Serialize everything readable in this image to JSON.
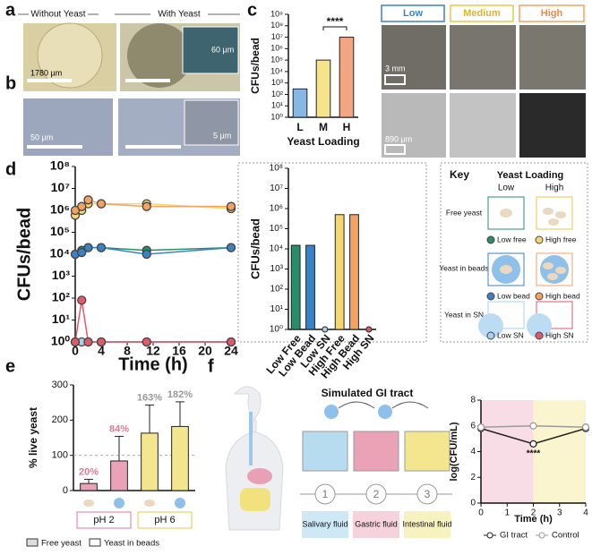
{
  "panel_labels": [
    "a",
    "b",
    "c",
    "d",
    "e",
    "f"
  ],
  "panel_a": {
    "left": "Without Yeast",
    "right": "With Yeast",
    "scale_bars": [
      "1780 µm",
      "60 µm"
    ]
  },
  "panel_b": {
    "scale_bars": [
      "50 µm",
      "5 µm"
    ]
  },
  "panel_c_images": {
    "columns": [
      "Low",
      "Medium",
      "High"
    ],
    "scale_bars": [
      "3 mm",
      "890 µm"
    ]
  },
  "key": {
    "title": "Key",
    "subtitle": "Yeast Loading",
    "columns": [
      "Low",
      "High"
    ],
    "rows": [
      "Free yeast",
      "Yeast in beads",
      "Yeast in SN"
    ]
  },
  "panel_f": {
    "title": "Simulated GI tract",
    "steps": [
      "1",
      "2",
      "3"
    ],
    "fluids": [
      "Salivary fluid",
      "Gastric fluid",
      "Intestinal fluid"
    ]
  },
  "chart_data": [
    {
      "type": "bar",
      "ylabel": "CFUs/bead",
      "xlabel": "Yeast Loading",
      "log_y": true,
      "categories": [
        "L",
        "M",
        "H"
      ],
      "values": [
        300,
        100000,
        10000000
      ],
      "colors": [
        "#86b8e3",
        "#f6e48c",
        "#f4a582"
      ],
      "annotation": "****",
      "ylim": [
        1,
        1000000000
      ],
      "yticks": [
        {
          "value": 1,
          "label": "10⁰"
        },
        {
          "value": 10,
          "label": "10¹"
        },
        {
          "value": 100,
          "label": "10²"
        },
        {
          "value": 1000,
          "label": "10³"
        },
        {
          "value": 10000,
          "label": "10⁴"
        },
        {
          "value": 100000,
          "label": "10⁵"
        },
        {
          "value": 1000000,
          "label": "10⁶"
        },
        {
          "value": 10000000,
          "label": "10⁷"
        },
        {
          "value": 100000000,
          "label": "10⁸"
        },
        {
          "value": 1000000000,
          "label": "10⁹"
        }
      ]
    },
    {
      "type": "line",
      "ylabel": "CFUs/bead",
      "xlabel": "Time (h)",
      "log_y": true,
      "x": [
        0,
        1,
        2,
        4,
        11,
        24
      ],
      "series": [
        {
          "name": "Low free",
          "color": "#2a8c6a",
          "values": [
            10000,
            15000,
            20000,
            20000,
            15000,
            20000
          ]
        },
        {
          "name": "High free",
          "color": "#f5d76e",
          "values": [
            600000,
            1000000,
            2000000,
            2000000,
            2000000,
            1200000
          ]
        },
        {
          "name": "Low bead",
          "color": "#3b82c4",
          "values": [
            10000,
            12000,
            20000,
            20000,
            10000,
            20000
          ]
        },
        {
          "name": "High bead",
          "color": "#f4a261",
          "values": [
            1000000,
            1500000,
            3000000,
            2000000,
            1500000,
            1500000
          ]
        },
        {
          "name": "Low SN",
          "color": "#a8d0f0",
          "values": [
            1,
            1,
            1,
            1,
            1,
            1
          ]
        },
        {
          "name": "High SN",
          "color": "#e05a6a",
          "values": [
            1,
            80,
            1,
            1,
            1,
            1
          ]
        }
      ],
      "xlim": [
        0,
        24
      ],
      "xticks": [
        0,
        4,
        8,
        12,
        16,
        20,
        24
      ],
      "ylim": [
        1,
        100000000
      ],
      "yticks": [
        {
          "value": 1,
          "label": "10⁰"
        },
        {
          "value": 10,
          "label": "10¹"
        },
        {
          "value": 100,
          "label": "10²"
        },
        {
          "value": 1000,
          "label": "10³"
        },
        {
          "value": 10000,
          "label": "10⁴"
        },
        {
          "value": 100000,
          "label": "10⁵"
        },
        {
          "value": 1000000,
          "label": "10⁶"
        },
        {
          "value": 10000000,
          "label": "10⁷"
        },
        {
          "value": 100000000,
          "label": "10⁸"
        }
      ]
    },
    {
      "type": "bar",
      "ylabel": "CFUs/bead",
      "log_y": true,
      "categories": [
        "Low Free",
        "Low Bead",
        "Low SN",
        "High Free",
        "High Bead",
        "High SN"
      ],
      "values": [
        15000,
        15000,
        1,
        500000,
        500000,
        1
      ],
      "colors": [
        "#2a8c6a",
        "#3b82c4",
        "#a8d0f0",
        "#f5d76e",
        "#f4a261",
        "#e05a6a"
      ],
      "ylim": [
        1,
        100000000
      ],
      "yticks": [
        {
          "value": 1,
          "label": "10⁰"
        },
        {
          "value": 10,
          "label": "10¹"
        },
        {
          "value": 100,
          "label": "10²"
        },
        {
          "value": 1000,
          "label": "10³"
        },
        {
          "value": 10000,
          "label": "10⁴"
        },
        {
          "value": 100000,
          "label": "10⁵"
        },
        {
          "value": 1000000,
          "label": "10⁶"
        },
        {
          "value": 10000000,
          "label": "10⁷"
        },
        {
          "value": 100000000,
          "label": "10⁸"
        }
      ]
    },
    {
      "type": "bar",
      "ylabel": "% live yeast",
      "categories": [
        null,
        null,
        null,
        null
      ],
      "values": [
        20,
        84,
        163,
        182
      ],
      "errors": [
        12,
        70,
        80,
        70
      ],
      "value_labels": [
        "20%",
        "84%",
        "163%",
        "182%"
      ],
      "value_label_colors": [
        "#e07a94",
        "#e07a94",
        "#999999",
        "#999999"
      ],
      "colors": [
        "#eaa3b6",
        "#eaa3b6",
        "#f4e68f",
        "#f4e68f"
      ],
      "reference_line": 100,
      "groups": [
        "pH 2",
        "pH 6"
      ],
      "legend_labels": [
        "Free yeast",
        "Yeast in beads"
      ],
      "ylim": [
        0,
        300
      ],
      "yticks": [
        0,
        100,
        200,
        300
      ]
    },
    {
      "type": "line",
      "ylabel": "log(CFU/mL)",
      "xlabel": "Time (h)",
      "annotation": "****",
      "x": [
        0,
        2,
        4
      ],
      "series": [
        {
          "name": "GI tract",
          "color": "#222222",
          "values": [
            5.8,
            4.6,
            5.8
          ]
        },
        {
          "name": "Control",
          "color": "#999999",
          "values": [
            5.9,
            6.0,
            5.9
          ]
        }
      ],
      "xlim": [
        0,
        4
      ],
      "xticks": [
        0,
        1,
        2,
        3,
        4
      ],
      "ylim": [
        0,
        8
      ],
      "yticks": [
        0,
        2,
        4,
        6,
        8
      ]
    }
  ]
}
